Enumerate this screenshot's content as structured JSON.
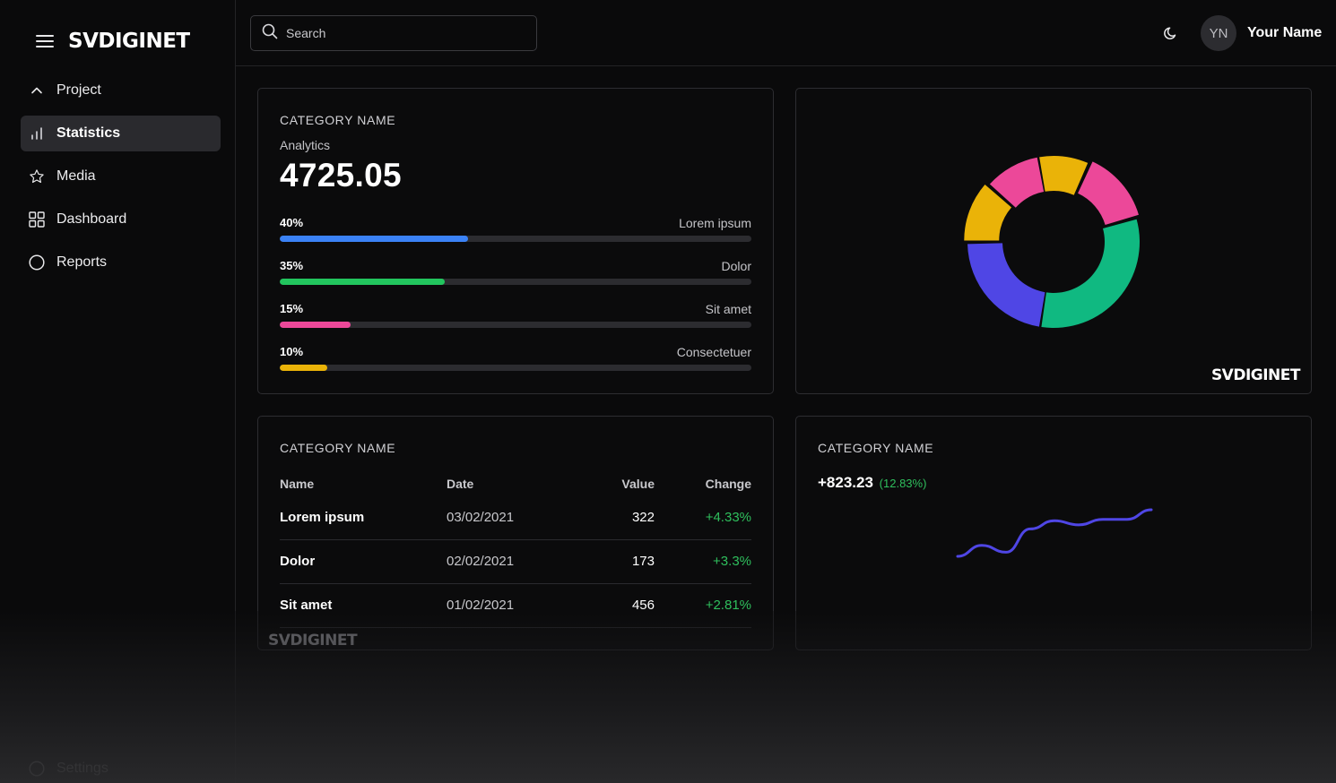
{
  "brand": "SVDIGINET",
  "sidebar": {
    "items": [
      {
        "label": "Project",
        "icon": "chevron-up-icon"
      },
      {
        "label": "Statistics",
        "icon": "bar-chart-icon",
        "active": true
      },
      {
        "label": "Media",
        "icon": "star-icon"
      },
      {
        "label": "Dashboard",
        "icon": "grid-icon"
      },
      {
        "label": "Reports",
        "icon": "circle-icon"
      }
    ],
    "settings_label": "Settings"
  },
  "header": {
    "search_placeholder": "Search",
    "avatar_initials": "YN",
    "user_name": "Your Name"
  },
  "analytics_card": {
    "category": "CATEGORY NAME",
    "subtitle": "Analytics",
    "value": "4725.05",
    "bars": [
      {
        "percent_label": "40%",
        "value": 40,
        "label": "Lorem ipsum",
        "color": "#3b82f6"
      },
      {
        "percent_label": "35%",
        "value": 35,
        "label": "Dolor",
        "color": "#22c55e"
      },
      {
        "percent_label": "15%",
        "value": 15,
        "label": "Sit amet",
        "color": "#ec4899"
      },
      {
        "percent_label": "10%",
        "value": 10,
        "label": "Consectetuer",
        "color": "#eab308"
      }
    ]
  },
  "donut_card": {
    "watermark": "SVDIGINET",
    "segments": [
      {
        "value": 30,
        "color": "#10b981"
      },
      {
        "value": 21,
        "color": "#4f46e5"
      },
      {
        "value": 11,
        "color": "#eab308"
      },
      {
        "value": 10,
        "color": "#ec4899"
      },
      {
        "value": 9,
        "color": "#eab308"
      },
      {
        "value": 13,
        "color": "#ec4899"
      }
    ]
  },
  "table_card": {
    "category": "CATEGORY NAME",
    "columns": [
      "Name",
      "Date",
      "Value",
      "Change"
    ],
    "rows": [
      {
        "name": "Lorem ipsum",
        "date": "03/02/2021",
        "value": "322",
        "change": "+4.33%"
      },
      {
        "name": "Dolor",
        "date": "02/02/2021",
        "value": "173",
        "change": "+3.3%"
      },
      {
        "name": "Sit amet",
        "date": "01/02/2021",
        "value": "456",
        "change": "+2.81%"
      }
    ],
    "watermark": "SVDIGINET"
  },
  "trend_card": {
    "category": "CATEGORY NAME",
    "value": "+823.23",
    "change": "(12.83%)",
    "line_color": "#4f46e5",
    "sparkline": [
      10,
      18,
      13,
      30,
      36,
      33,
      37,
      37,
      44
    ]
  }
}
